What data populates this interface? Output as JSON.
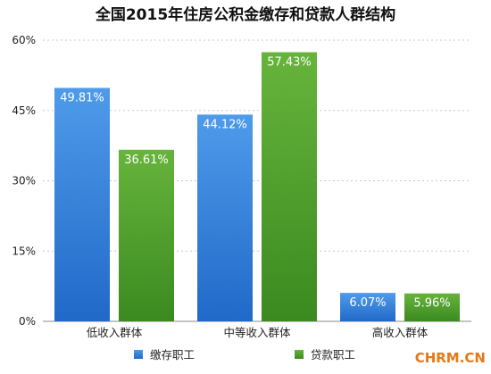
{
  "chart_data": {
    "type": "bar",
    "title": "全国2015年住房公积金缴存和贷款人群结构",
    "categories": [
      "低收入群体",
      "中等收入群体",
      "高收入群体"
    ],
    "series": [
      {
        "name": "缴存职工",
        "color": "#2f7fd9",
        "values": [
          49.81,
          44.12,
          6.07
        ],
        "labels": [
          "49.81%",
          "44.12%",
          "6.07%"
        ]
      },
      {
        "name": "贷款职工",
        "color": "#4d9a2b",
        "values": [
          36.61,
          57.43,
          5.96
        ],
        "labels": [
          "36.61%",
          "57.43%",
          "5.96%"
        ]
      }
    ],
    "ylim": [
      0,
      60
    ],
    "yticks": [
      0,
      15,
      30,
      45,
      60
    ],
    "ytick_labels": [
      "0%",
      "15%",
      "30%",
      "45%",
      "60%"
    ],
    "grid": true,
    "legend_position": "bottom"
  },
  "watermark": "CHRM.CN"
}
